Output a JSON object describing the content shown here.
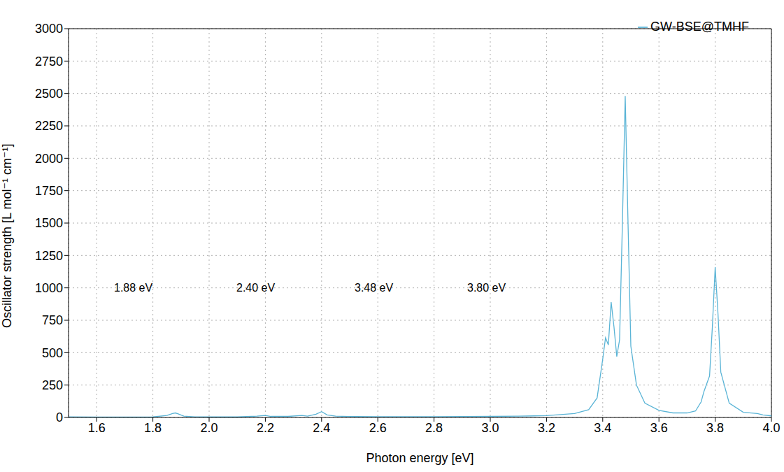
{
  "chart_data": {
    "type": "line",
    "x_label": "Photon energy [eV]",
    "y_label": "Oscillator strength [L mol⁻¹ cm⁻¹]",
    "xlim": [
      1.5,
      4.0
    ],
    "xticks": [
      1.6,
      1.8,
      {
        "value": 2.0,
        "label": "2.0"
      },
      2.2,
      2.4,
      2.6,
      2.8,
      {
        "value": 3.0,
        "label": "3.0"
      },
      3.2,
      3.4,
      3.6,
      3.8,
      {
        "value": 4.0,
        "label": "4.0"
      }
    ],
    "ylim": [
      0,
      3000
    ],
    "yticks": [
      0,
      250,
      500,
      750,
      1000,
      1250,
      1500,
      1750,
      2000,
      2250,
      2500,
      2750,
      3000
    ],
    "grid": true,
    "legend": "top-right",
    "annotations": [
      "1.88 eV",
      "2.40 eV",
      "3.48 eV",
      "3.80 eV"
    ],
    "x": [
      1.5,
      1.6,
      1.7,
      1.75,
      1.8,
      1.85,
      1.87,
      1.88,
      1.89,
      1.91,
      1.95,
      2.0,
      2.1,
      2.15,
      2.17,
      2.2,
      2.22,
      2.28,
      2.33,
      2.35,
      2.38,
      2.4,
      2.42,
      2.45,
      2.5,
      2.6,
      2.7,
      2.8,
      2.9,
      3.0,
      3.1,
      3.2,
      3.3,
      3.35,
      3.38,
      3.4,
      3.41,
      3.42,
      3.43,
      3.44,
      3.45,
      3.46,
      3.47,
      3.48,
      3.49,
      3.5,
      3.52,
      3.55,
      3.6,
      3.65,
      3.7,
      3.73,
      3.75,
      3.76,
      3.77,
      3.78,
      3.79,
      3.8,
      3.81,
      3.82,
      3.85,
      3.9,
      3.95,
      3.97,
      4.0
    ],
    "series": [
      {
        "name": "GW-BSE@TMHF",
        "color": "#5ab4d6",
        "values": [
          5,
          3,
          3,
          3,
          4,
          15,
          30,
          35,
          28,
          10,
          5,
          4,
          4,
          8,
          10,
          15,
          8,
          8,
          15,
          10,
          25,
          45,
          20,
          10,
          7,
          6,
          6,
          6,
          7,
          8,
          10,
          14,
          30,
          60,
          150,
          450,
          615,
          560,
          890,
          700,
          470,
          600,
          1500,
          2480,
          1500,
          550,
          250,
          110,
          55,
          35,
          35,
          50,
          120,
          200,
          260,
          320,
          700,
          1160,
          800,
          350,
          110,
          40,
          30,
          20,
          12
        ]
      }
    ]
  }
}
